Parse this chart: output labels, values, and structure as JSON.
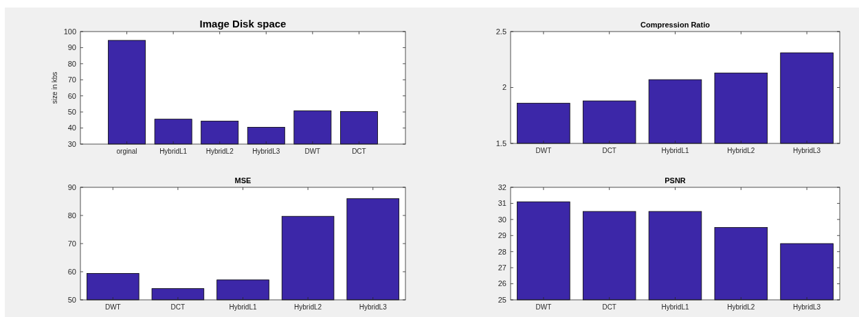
{
  "chart_data": [
    {
      "type": "bar",
      "title": "Image Disk space",
      "ylabel": "size  in kbs",
      "categories": [
        "orginal",
        "HybridL1",
        "HybridL2",
        "HybridL3",
        "DWT",
        "DCT"
      ],
      "values": [
        94.5,
        45.5,
        44.3,
        40.5,
        50.7,
        50.3
      ],
      "color": "#3c27a8",
      "ylim": [
        30,
        100
      ],
      "yticks": [
        30,
        40,
        50,
        60,
        70,
        80,
        90,
        100
      ],
      "grid": false
    },
    {
      "type": "bar",
      "title": "Compression Ratio",
      "categories": [
        "DWT",
        "DCT",
        "HybridL1",
        "HybridL2",
        "HybridL3"
      ],
      "values": [
        1.86,
        1.88,
        2.07,
        2.13,
        2.31
      ],
      "color": "#3c27a8",
      "ylim": [
        1.5,
        2.5
      ],
      "yticks": [
        1.5,
        2,
        2.5
      ],
      "grid": false
    },
    {
      "type": "bar",
      "title": "MSE",
      "categories": [
        "DWT",
        "DCT",
        "HybridL1",
        "HybridL2",
        "HybridL3"
      ],
      "values": [
        59.4,
        54.0,
        57.1,
        79.7,
        86.0
      ],
      "color": "#3c27a8",
      "ylim": [
        50,
        90
      ],
      "yticks": [
        50,
        60,
        70,
        80,
        90
      ],
      "grid": false
    },
    {
      "type": "bar",
      "title": "PSNR",
      "categories": [
        "DWT",
        "DCT",
        "HybridL1",
        "HybridL2",
        "HybridL3"
      ],
      "values": [
        31.1,
        30.5,
        30.5,
        29.5,
        28.5
      ],
      "color": "#3c27a8",
      "ylim": [
        25,
        32
      ],
      "yticks": [
        25,
        26,
        27,
        28,
        29,
        30,
        31,
        32
      ],
      "grid": false
    }
  ]
}
